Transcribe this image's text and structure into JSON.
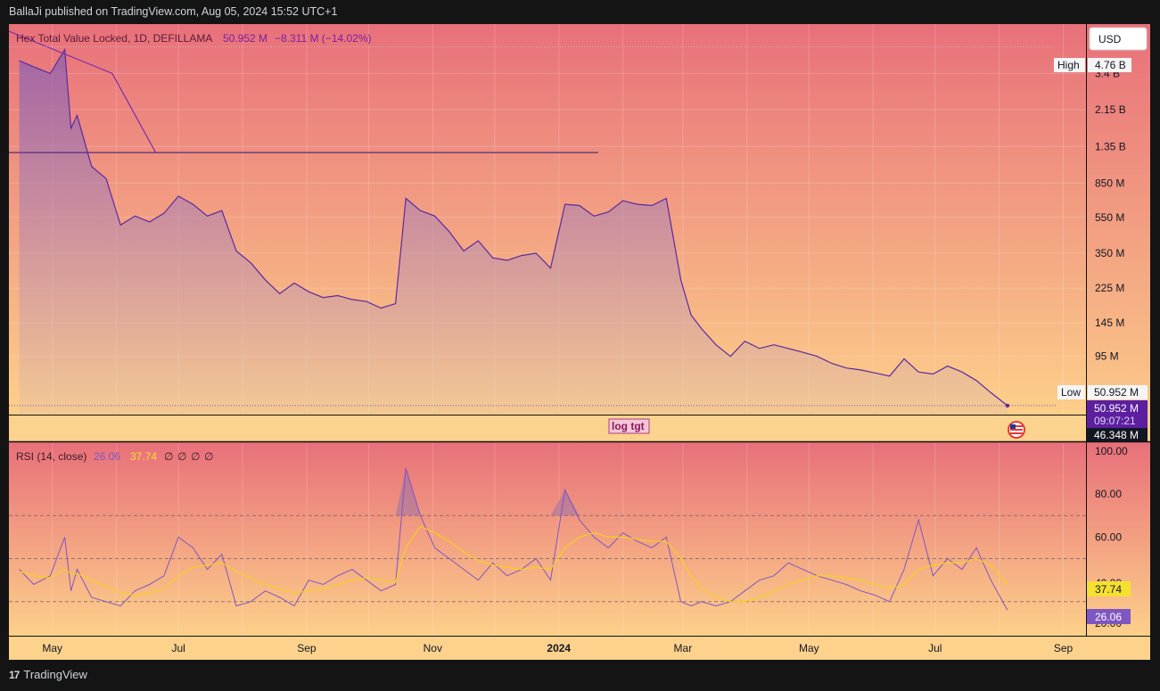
{
  "header": {
    "published_by": "BallaJi published on TradingView.com, Aug 05, 2024 15:52 UTC+1"
  },
  "legend": {
    "symbol": "Hex Total Value Locked, 1D, DEFILLAMA",
    "last_value": "50.952 M",
    "change": "−8.311 M (−14.02%)"
  },
  "currency_button": "USD",
  "price_scale": {
    "ticks": [
      "3.4 B",
      "2.15 B",
      "1.35 B",
      "850 M",
      "550 M",
      "350 M",
      "225 M",
      "145 M",
      "95 M"
    ],
    "high_label": "High",
    "high_value": "4.76 B",
    "low_label": "Low",
    "low_value": "50.952 M",
    "last_price": "50.952 M",
    "countdown": "09:07:21",
    "crosshair_value": "46.348 M"
  },
  "drawing_label": "log tgt",
  "rsi": {
    "title": "RSI (14, close)",
    "rsi_value": "26.06",
    "ma_value": "37.74",
    "placeholders": [
      "∅",
      "∅",
      "∅",
      "∅"
    ],
    "ticks": [
      "100.00",
      "80.00",
      "60.00",
      "20.00"
    ],
    "partial_tick": "40.00"
  },
  "time_axis": [
    "May",
    "Jul",
    "Sep",
    "Nov",
    "2024",
    "Mar",
    "May",
    "Jul",
    "Sep"
  ],
  "footer": {
    "brand": "TradingView",
    "logo_glyph": "17"
  },
  "colors": {
    "gradient_top": "#e8707a",
    "gradient_bottom": "#fdd08a",
    "line": "#5b2a9e",
    "rsi_line": "#7e57c2",
    "rsi_ma": "#f5d31a",
    "legend_text": "#7b1fa2"
  },
  "chart_data": [
    {
      "type": "area",
      "scale": "log",
      "x": [
        "2023-04-15",
        "2023-04-22",
        "2023-04-30",
        "2023-05-07",
        "2023-05-10",
        "2023-05-13",
        "2023-05-20",
        "2023-05-27",
        "2023-06-03",
        "2023-06-10",
        "2023-06-17",
        "2023-06-24",
        "2023-07-01",
        "2023-07-08",
        "2023-07-15",
        "2023-07-22",
        "2023-07-29",
        "2023-08-05",
        "2023-08-12",
        "2023-08-19",
        "2023-08-26",
        "2023-09-02",
        "2023-09-09",
        "2023-09-16",
        "2023-09-23",
        "2023-09-30",
        "2023-10-07",
        "2023-10-14",
        "2023-10-19",
        "2023-10-26",
        "2023-11-02",
        "2023-11-09",
        "2023-11-16",
        "2023-11-23",
        "2023-11-30",
        "2023-12-07",
        "2023-12-14",
        "2023-12-21",
        "2023-12-28",
        "2024-01-04",
        "2024-01-11",
        "2024-01-18",
        "2024-01-25",
        "2024-02-01",
        "2024-02-08",
        "2024-02-15",
        "2024-02-22",
        "2024-02-29",
        "2024-03-05",
        "2024-03-10",
        "2024-03-17",
        "2024-03-24",
        "2024-03-31",
        "2024-04-07",
        "2024-04-14",
        "2024-04-21",
        "2024-04-28",
        "2024-05-05",
        "2024-05-12",
        "2024-05-19",
        "2024-05-26",
        "2024-06-02",
        "2024-06-09",
        "2024-06-16",
        "2024-06-23",
        "2024-06-30",
        "2024-07-07",
        "2024-07-14",
        "2024-07-21",
        "2024-07-28",
        "2024-08-05"
      ],
      "values": [
        4000000000.0,
        3700000000.0,
        3400000000.0,
        4600000000.0,
        1700000000.0,
        2000000000.0,
        1050000000.0,
        900000000.0,
        500000000.0,
        560000000.0,
        520000000.0,
        580000000.0,
        720000000.0,
        650000000.0,
        560000000.0,
        600000000.0,
        360000000.0,
        310000000.0,
        250000000.0,
        210000000.0,
        240000000.0,
        215000000.0,
        200000000.0,
        205000000.0,
        195000000.0,
        190000000.0,
        175000000.0,
        185000000.0,
        700000000.0,
        600000000.0,
        560000000.0,
        460000000.0,
        360000000.0,
        410000000.0,
        330000000.0,
        320000000.0,
        340000000.0,
        350000000.0,
        290000000.0,
        650000000.0,
        640000000.0,
        560000000.0,
        590000000.0,
        680000000.0,
        650000000.0,
        640000000.0,
        700000000.0,
        250000000.0,
        160000000.0,
        135000000.0,
        110000000.0,
        95000000.0,
        115000000.0,
        105000000.0,
        110000000.0,
        105000000.0,
        100000000.0,
        95000000.0,
        87000000.0,
        82000000.0,
        80000000.0,
        77000000.0,
        74000000.0,
        92000000.0,
        78000000.0,
        76000000.0,
        84000000.0,
        78000000.0,
        70000000.0,
        60000000.0,
        50952000.0
      ],
      "high": 4760000000.0,
      "low": 50952000.0,
      "ylim": [
        46000000.0,
        6000000000.0
      ],
      "trendline": {
        "from": [
          "2023-04-10",
          5800000000.0
        ],
        "via": [
          "2023-05-30",
          3400000000.0
        ],
        "to": [
          "2023-06-20",
          1250000000.0
        ]
      },
      "horizontal_line": {
        "from": "2023-04-10",
        "to": "2024-01-20",
        "value": 1250000000.0
      }
    },
    {
      "type": "line",
      "title": "RSI (14, close)",
      "x": [
        "2023-04-15",
        "2023-04-22",
        "2023-04-30",
        "2023-05-07",
        "2023-05-10",
        "2023-05-13",
        "2023-05-20",
        "2023-05-27",
        "2023-06-03",
        "2023-06-10",
        "2023-06-17",
        "2023-06-24",
        "2023-07-01",
        "2023-07-08",
        "2023-07-15",
        "2023-07-22",
        "2023-07-29",
        "2023-08-05",
        "2023-08-12",
        "2023-08-19",
        "2023-08-26",
        "2023-09-02",
        "2023-09-09",
        "2023-09-16",
        "2023-09-23",
        "2023-09-30",
        "2023-10-07",
        "2023-10-14",
        "2023-10-19",
        "2023-10-26",
        "2023-11-02",
        "2023-11-09",
        "2023-11-16",
        "2023-11-23",
        "2023-11-30",
        "2023-12-07",
        "2023-12-14",
        "2023-12-21",
        "2023-12-28",
        "2024-01-04",
        "2024-01-11",
        "2024-01-18",
        "2024-01-25",
        "2024-02-01",
        "2024-02-08",
        "2024-02-15",
        "2024-02-22",
        "2024-02-29",
        "2024-03-05",
        "2024-03-10",
        "2024-03-17",
        "2024-03-24",
        "2024-03-31",
        "2024-04-07",
        "2024-04-14",
        "2024-04-21",
        "2024-04-28",
        "2024-05-05",
        "2024-05-12",
        "2024-05-19",
        "2024-05-26",
        "2024-06-02",
        "2024-06-09",
        "2024-06-16",
        "2024-06-23",
        "2024-06-30",
        "2024-07-07",
        "2024-07-14",
        "2024-07-21",
        "2024-07-28",
        "2024-08-05"
      ],
      "series": [
        {
          "values": [
            45,
            38,
            42,
            60,
            35,
            45,
            32,
            30,
            28,
            35,
            38,
            42,
            60,
            55,
            45,
            52,
            28,
            30,
            35,
            32,
            28,
            40,
            38,
            42,
            45,
            40,
            35,
            38,
            92,
            70,
            55,
            50,
            45,
            40,
            48,
            42,
            45,
            50,
            40,
            82,
            68,
            60,
            55,
            62,
            58,
            55,
            60,
            30,
            28,
            30,
            28,
            30,
            35,
            40,
            42,
            48,
            45,
            42,
            40,
            38,
            35,
            33,
            30,
            45,
            68,
            42,
            50,
            45,
            55,
            40,
            26.06
          ]
        },
        {
          "values": [
            44,
            42,
            41,
            45,
            43,
            43,
            40,
            37,
            34,
            33,
            34,
            36,
            42,
            46,
            47,
            48,
            44,
            41,
            38,
            36,
            34,
            35,
            36,
            38,
            40,
            41,
            40,
            39,
            55,
            65,
            62,
            58,
            53,
            49,
            47,
            46,
            45,
            46,
            45,
            55,
            60,
            62,
            60,
            60,
            59,
            58,
            58,
            50,
            42,
            36,
            32,
            30,
            30,
            32,
            35,
            38,
            40,
            42,
            42,
            41,
            40,
            38,
            36,
            38,
            45,
            47,
            48,
            48,
            50,
            47,
            37.74
          ]
        }
      ],
      "ylim": [
        15,
        102
      ],
      "bands": [
        30,
        50,
        70
      ]
    }
  ]
}
